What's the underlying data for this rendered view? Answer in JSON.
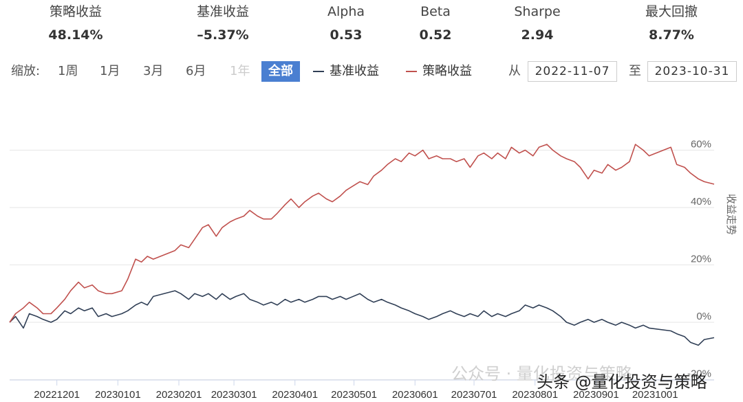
{
  "stats": [
    {
      "label": "策略收益",
      "value": "48.14%"
    },
    {
      "label": "基准收益",
      "value": "–5.37%"
    },
    {
      "label": "Alpha",
      "value": "0.53"
    },
    {
      "label": "Beta",
      "value": "0.52"
    },
    {
      "label": "Sharpe",
      "value": "2.94"
    },
    {
      "label": "最大回撤",
      "value": "8.77%"
    }
  ],
  "toolbar": {
    "zoom_label": "缩放:",
    "zoom_options": [
      {
        "label": "1周",
        "state": "normal"
      },
      {
        "label": "1月",
        "state": "normal"
      },
      {
        "label": "3月",
        "state": "normal"
      },
      {
        "label": "6月",
        "state": "normal"
      },
      {
        "label": "1年",
        "state": "disabled"
      },
      {
        "label": "全部",
        "state": "active"
      }
    ],
    "from_label": "从",
    "from_date": "2022-11-07",
    "to_label": "至",
    "to_date": "2023-10-31"
  },
  "colors": {
    "strategy": "#c0504d",
    "benchmark": "#2f3e55",
    "active_button": "#4a7fd1",
    "grid": "#e6e6e6"
  },
  "watermark": {
    "faint": "公众号 · 量化投资与策略",
    "main": "头条 @量化投资与策略"
  },
  "chart_data": {
    "type": "line",
    "title": "",
    "xlabel": "",
    "ylabel": "收益走势",
    "ylim": [
      -0.2,
      0.6
    ],
    "y_ticks": [
      {
        "v": -0.2,
        "label": "-20%"
      },
      {
        "v": 0.0,
        "label": "0%"
      },
      {
        "v": 0.2,
        "label": "20%"
      },
      {
        "v": 0.4,
        "label": "40%"
      },
      {
        "v": 0.6,
        "label": "60%"
      }
    ],
    "x_ticks": [
      "20221201",
      "20230101",
      "20230201",
      "20230301",
      "20230401",
      "20230501",
      "20230601",
      "20230701",
      "20230801",
      "20230901",
      "20231001"
    ],
    "grid": true,
    "legend_position": "top",
    "series": [
      {
        "name": "基准收益",
        "points": [
          [
            "2022-11-07",
            0.0
          ],
          [
            "2022-11-10",
            0.02
          ],
          [
            "2022-11-14",
            -0.02
          ],
          [
            "2022-11-17",
            0.03
          ],
          [
            "2022-11-21",
            0.02
          ],
          [
            "2022-11-24",
            0.01
          ],
          [
            "2022-11-28",
            0.0
          ],
          [
            "2022-12-01",
            0.01
          ],
          [
            "2022-12-05",
            0.04
          ],
          [
            "2022-12-08",
            0.03
          ],
          [
            "2022-12-12",
            0.05
          ],
          [
            "2022-12-15",
            0.04
          ],
          [
            "2022-12-19",
            0.05
          ],
          [
            "2022-12-22",
            0.02
          ],
          [
            "2022-12-26",
            0.03
          ],
          [
            "2022-12-29",
            0.02
          ],
          [
            "2023-01-03",
            0.03
          ],
          [
            "2023-01-06",
            0.04
          ],
          [
            "2023-01-10",
            0.06
          ],
          [
            "2023-01-13",
            0.07
          ],
          [
            "2023-01-16",
            0.06
          ],
          [
            "2023-01-19",
            0.09
          ],
          [
            "2023-01-30",
            0.11
          ],
          [
            "2023-02-02",
            0.1
          ],
          [
            "2023-02-06",
            0.08
          ],
          [
            "2023-02-09",
            0.1
          ],
          [
            "2023-02-13",
            0.09
          ],
          [
            "2023-02-16",
            0.1
          ],
          [
            "2023-02-20",
            0.08
          ],
          [
            "2023-02-23",
            0.1
          ],
          [
            "2023-02-27",
            0.08
          ],
          [
            "2023-03-02",
            0.09
          ],
          [
            "2023-03-06",
            0.1
          ],
          [
            "2023-03-09",
            0.08
          ],
          [
            "2023-03-13",
            0.07
          ],
          [
            "2023-03-16",
            0.06
          ],
          [
            "2023-03-20",
            0.07
          ],
          [
            "2023-03-23",
            0.06
          ],
          [
            "2023-03-27",
            0.08
          ],
          [
            "2023-03-30",
            0.07
          ],
          [
            "2023-04-03",
            0.08
          ],
          [
            "2023-04-06",
            0.07
          ],
          [
            "2023-04-10",
            0.08
          ],
          [
            "2023-04-13",
            0.09
          ],
          [
            "2023-04-17",
            0.09
          ],
          [
            "2023-04-20",
            0.08
          ],
          [
            "2023-04-24",
            0.09
          ],
          [
            "2023-04-27",
            0.08
          ],
          [
            "2023-05-04",
            0.1
          ],
          [
            "2023-05-08",
            0.08
          ],
          [
            "2023-05-11",
            0.07
          ],
          [
            "2023-05-15",
            0.08
          ],
          [
            "2023-05-18",
            0.07
          ],
          [
            "2023-05-22",
            0.06
          ],
          [
            "2023-05-25",
            0.05
          ],
          [
            "2023-05-29",
            0.04
          ],
          [
            "2023-06-01",
            0.03
          ],
          [
            "2023-06-05",
            0.02
          ],
          [
            "2023-06-08",
            0.01
          ],
          [
            "2023-06-12",
            0.02
          ],
          [
            "2023-06-15",
            0.03
          ],
          [
            "2023-06-19",
            0.04
          ],
          [
            "2023-06-22",
            0.03
          ],
          [
            "2023-06-26",
            0.02
          ],
          [
            "2023-06-29",
            0.03
          ],
          [
            "2023-07-03",
            0.02
          ],
          [
            "2023-07-06",
            0.04
          ],
          [
            "2023-07-10",
            0.02
          ],
          [
            "2023-07-13",
            0.03
          ],
          [
            "2023-07-17",
            0.02
          ],
          [
            "2023-07-20",
            0.03
          ],
          [
            "2023-07-24",
            0.04
          ],
          [
            "2023-07-27",
            0.06
          ],
          [
            "2023-07-31",
            0.05
          ],
          [
            "2023-08-03",
            0.06
          ],
          [
            "2023-08-07",
            0.05
          ],
          [
            "2023-08-10",
            0.04
          ],
          [
            "2023-08-14",
            0.02
          ],
          [
            "2023-08-17",
            0.0
          ],
          [
            "2023-08-21",
            -0.01
          ],
          [
            "2023-08-24",
            0.0
          ],
          [
            "2023-08-28",
            0.01
          ],
          [
            "2023-08-31",
            0.0
          ],
          [
            "2023-09-04",
            0.01
          ],
          [
            "2023-09-07",
            0.0
          ],
          [
            "2023-09-11",
            -0.01
          ],
          [
            "2023-09-14",
            0.0
          ],
          [
            "2023-09-18",
            -0.01
          ],
          [
            "2023-09-21",
            -0.02
          ],
          [
            "2023-09-25",
            -0.01
          ],
          [
            "2023-09-28",
            -0.02
          ],
          [
            "2023-10-09",
            -0.03
          ],
          [
            "2023-10-12",
            -0.04
          ],
          [
            "2023-10-16",
            -0.05
          ],
          [
            "2023-10-19",
            -0.07
          ],
          [
            "2023-10-23",
            -0.08
          ],
          [
            "2023-10-26",
            -0.06
          ],
          [
            "2023-10-31",
            -0.0537
          ]
        ]
      },
      {
        "name": "策略收益",
        "points": [
          [
            "2022-11-07",
            0.0
          ],
          [
            "2022-11-10",
            0.03
          ],
          [
            "2022-11-14",
            0.05
          ],
          [
            "2022-11-17",
            0.07
          ],
          [
            "2022-11-21",
            0.05
          ],
          [
            "2022-11-24",
            0.03
          ],
          [
            "2022-11-28",
            0.03
          ],
          [
            "2022-12-01",
            0.05
          ],
          [
            "2022-12-05",
            0.08
          ],
          [
            "2022-12-08",
            0.11
          ],
          [
            "2022-12-12",
            0.14
          ],
          [
            "2022-12-15",
            0.12
          ],
          [
            "2022-12-19",
            0.13
          ],
          [
            "2022-12-22",
            0.11
          ],
          [
            "2022-12-26",
            0.1
          ],
          [
            "2022-12-29",
            0.1
          ],
          [
            "2023-01-03",
            0.11
          ],
          [
            "2023-01-06",
            0.15
          ],
          [
            "2023-01-10",
            0.22
          ],
          [
            "2023-01-13",
            0.21
          ],
          [
            "2023-01-16",
            0.23
          ],
          [
            "2023-01-19",
            0.22
          ],
          [
            "2023-01-30",
            0.25
          ],
          [
            "2023-02-02",
            0.27
          ],
          [
            "2023-02-06",
            0.26
          ],
          [
            "2023-02-09",
            0.29
          ],
          [
            "2023-02-13",
            0.33
          ],
          [
            "2023-02-16",
            0.34
          ],
          [
            "2023-02-20",
            0.3
          ],
          [
            "2023-02-23",
            0.33
          ],
          [
            "2023-02-27",
            0.35
          ],
          [
            "2023-03-02",
            0.36
          ],
          [
            "2023-03-06",
            0.37
          ],
          [
            "2023-03-09",
            0.39
          ],
          [
            "2023-03-13",
            0.37
          ],
          [
            "2023-03-16",
            0.36
          ],
          [
            "2023-03-20",
            0.36
          ],
          [
            "2023-03-23",
            0.38
          ],
          [
            "2023-03-27",
            0.41
          ],
          [
            "2023-03-30",
            0.43
          ],
          [
            "2023-04-03",
            0.4
          ],
          [
            "2023-04-06",
            0.42
          ],
          [
            "2023-04-10",
            0.44
          ],
          [
            "2023-04-13",
            0.45
          ],
          [
            "2023-04-17",
            0.43
          ],
          [
            "2023-04-20",
            0.42
          ],
          [
            "2023-04-24",
            0.44
          ],
          [
            "2023-04-27",
            0.46
          ],
          [
            "2023-05-04",
            0.49
          ],
          [
            "2023-05-08",
            0.48
          ],
          [
            "2023-05-11",
            0.51
          ],
          [
            "2023-05-15",
            0.53
          ],
          [
            "2023-05-18",
            0.55
          ],
          [
            "2023-05-22",
            0.57
          ],
          [
            "2023-05-25",
            0.56
          ],
          [
            "2023-05-29",
            0.59
          ],
          [
            "2023-06-01",
            0.58
          ],
          [
            "2023-06-05",
            0.6
          ],
          [
            "2023-06-08",
            0.57
          ],
          [
            "2023-06-12",
            0.58
          ],
          [
            "2023-06-15",
            0.57
          ],
          [
            "2023-06-19",
            0.57
          ],
          [
            "2023-06-22",
            0.56
          ],
          [
            "2023-06-26",
            0.57
          ],
          [
            "2023-06-29",
            0.54
          ],
          [
            "2023-07-03",
            0.58
          ],
          [
            "2023-07-06",
            0.59
          ],
          [
            "2023-07-10",
            0.57
          ],
          [
            "2023-07-13",
            0.59
          ],
          [
            "2023-07-17",
            0.57
          ],
          [
            "2023-07-20",
            0.61
          ],
          [
            "2023-07-24",
            0.59
          ],
          [
            "2023-07-27",
            0.6
          ],
          [
            "2023-07-31",
            0.58
          ],
          [
            "2023-08-03",
            0.61
          ],
          [
            "2023-08-07",
            0.62
          ],
          [
            "2023-08-10",
            0.6
          ],
          [
            "2023-08-14",
            0.58
          ],
          [
            "2023-08-17",
            0.57
          ],
          [
            "2023-08-21",
            0.56
          ],
          [
            "2023-08-24",
            0.54
          ],
          [
            "2023-08-28",
            0.5
          ],
          [
            "2023-08-31",
            0.53
          ],
          [
            "2023-09-04",
            0.52
          ],
          [
            "2023-09-07",
            0.55
          ],
          [
            "2023-09-11",
            0.53
          ],
          [
            "2023-09-14",
            0.54
          ],
          [
            "2023-09-18",
            0.56
          ],
          [
            "2023-09-21",
            0.62
          ],
          [
            "2023-09-25",
            0.6
          ],
          [
            "2023-09-28",
            0.58
          ],
          [
            "2023-10-09",
            0.61
          ],
          [
            "2023-10-12",
            0.55
          ],
          [
            "2023-10-16",
            0.54
          ],
          [
            "2023-10-19",
            0.52
          ],
          [
            "2023-10-23",
            0.5
          ],
          [
            "2023-10-26",
            0.49
          ],
          [
            "2023-10-31",
            0.4814
          ]
        ]
      }
    ]
  }
}
